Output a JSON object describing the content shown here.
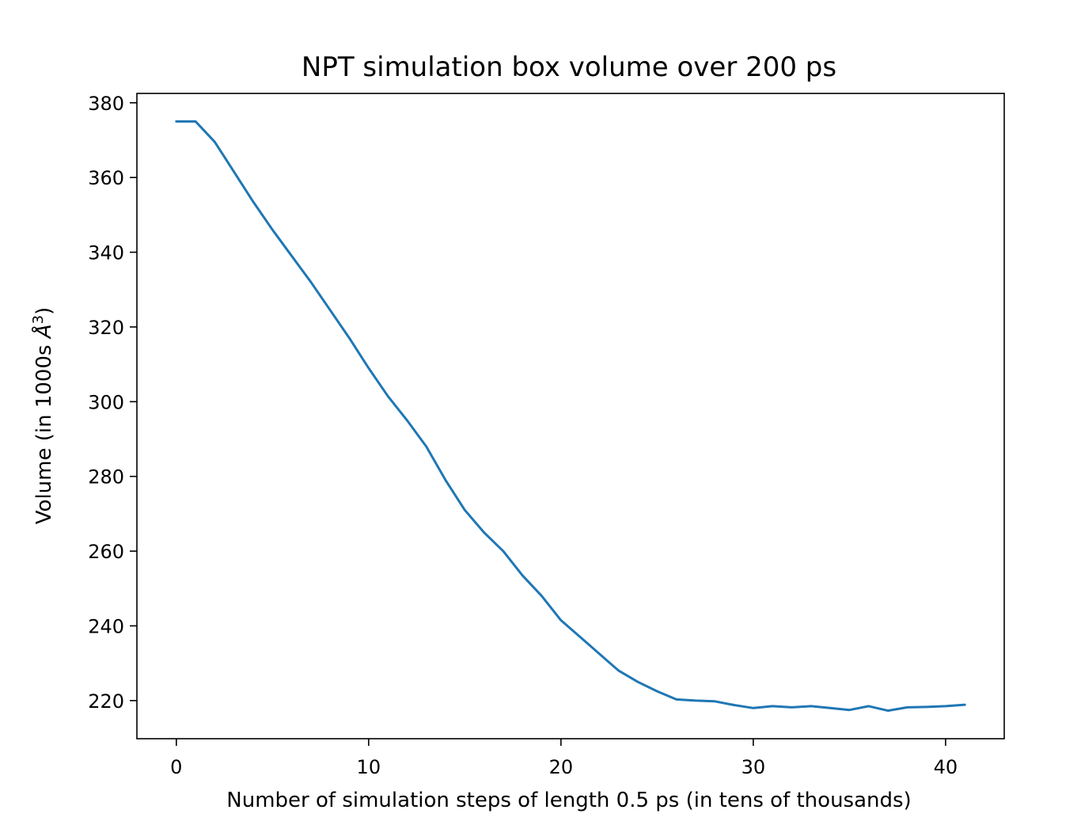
{
  "chart_data": {
    "type": "line",
    "title": "NPT simulation box volume over 200 ps",
    "xlabel": "Number of simulation steps of length 0.5 ps (in tens of thousands)",
    "ylabel_prefix": "Volume (in 1000s ",
    "ylabel_unit": "Å",
    "ylabel_exponent": "3",
    "ylabel_suffix": ")",
    "xlim": [
      -2.05,
      43.05
    ],
    "ylim": [
      209.8,
      382.5
    ],
    "xticks": [
      0,
      10,
      20,
      30,
      40
    ],
    "yticks": [
      220,
      240,
      260,
      280,
      300,
      320,
      340,
      360,
      380
    ],
    "grid": false,
    "color": "#1f77b4",
    "series": [
      {
        "x": [
          0,
          1,
          2,
          3,
          4,
          5,
          6,
          7,
          8,
          9,
          10,
          11,
          12,
          13,
          14,
          15,
          16,
          17,
          18,
          19,
          20,
          21,
          22,
          23,
          24,
          25,
          26,
          27,
          28,
          29,
          30,
          31,
          32,
          33,
          34,
          35,
          36,
          37,
          38,
          39,
          40,
          41
        ],
        "values": [
          375,
          375,
          369.5,
          361.5,
          353.5,
          346,
          339,
          332,
          324.5,
          317,
          309,
          301.5,
          295,
          288,
          279,
          271,
          265,
          260,
          253.5,
          248,
          241.5,
          237,
          232.5,
          228,
          225,
          222.5,
          220.3,
          220,
          219.8,
          218.8,
          218,
          218.5,
          218.2,
          218.5,
          218,
          217.5,
          218.5,
          217.3,
          218.2,
          218.3,
          218.5,
          218.9
        ]
      }
    ]
  }
}
